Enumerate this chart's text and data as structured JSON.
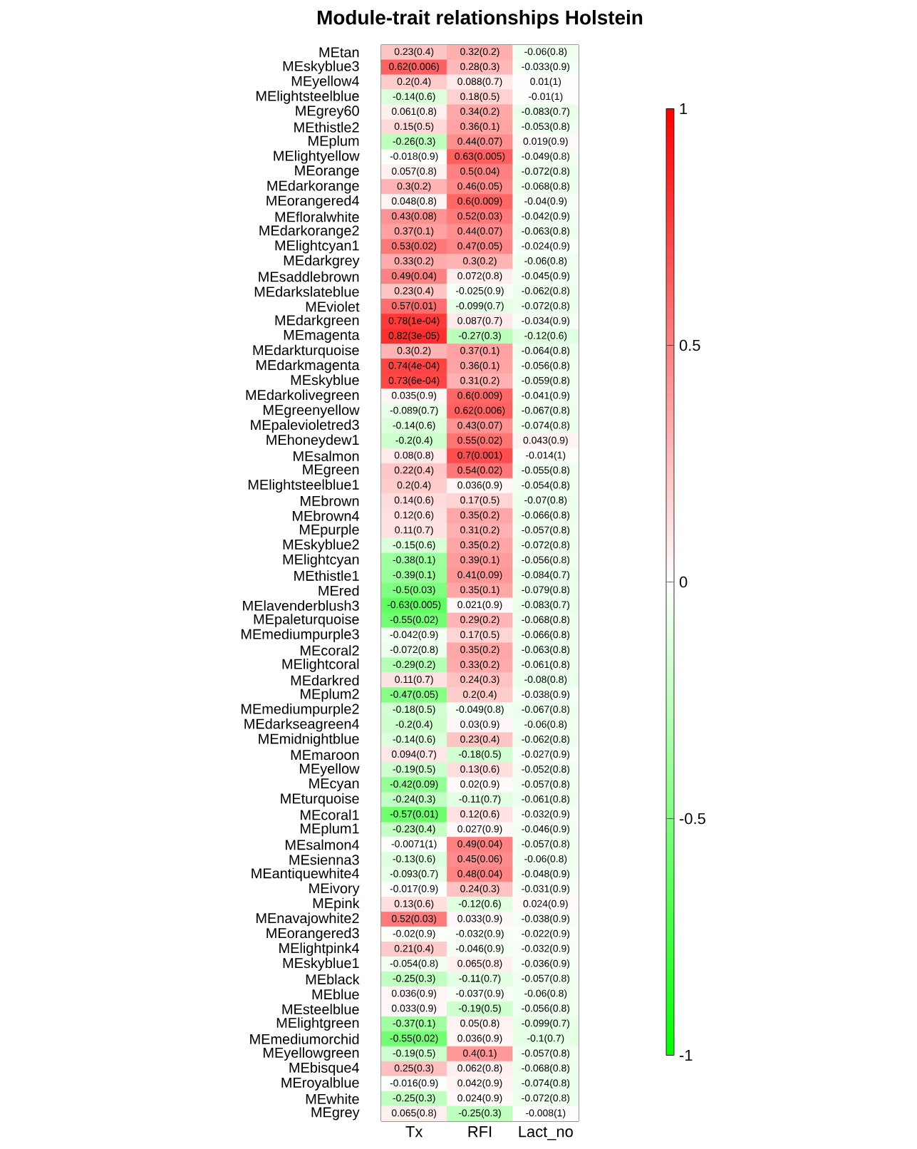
{
  "chart_data": {
    "type": "heatmap",
    "title": "Module-trait relationships Holstein",
    "categories": [
      "Tx",
      "RFI",
      "Lact_no"
    ],
    "y_categories": [
      "MEtan",
      "MEskyblue3",
      "MEyellow4",
      "MElightsteelblue",
      "MEgrey60",
      "MEthistle2",
      "MEplum",
      "MElightyellow",
      "MEorange",
      "MEdarkorange",
      "MEorangered4",
      "MEfloralwhite",
      "MEdarkorange2",
      "MElightcyan1",
      "MEdarkgrey",
      "MEsaddlebrown",
      "MEdarkslateblue",
      "MEviolet",
      "MEdarkgreen",
      "MEmagenta",
      "MEdarkturquoise",
      "MEdarkmagenta",
      "MEskyblue",
      "MEdarkolivegreen",
      "MEgreenyellow",
      "MEpalevioletred3",
      "MEhoneydew1",
      "MEsalmon",
      "MEgreen",
      "MElightsteelblue1",
      "MEbrown",
      "MEbrown4",
      "MEpurple",
      "MEskyblue2",
      "MElightcyan",
      "MEthistle1",
      "MEred",
      "MElavenderblush3",
      "MEpaleturquoise",
      "MEmediumpurple3",
      "MEcoral2",
      "MElightcoral",
      "MEdarkred",
      "MEplum2",
      "MEmediumpurple2",
      "MEdarkseagreen4",
      "MEmidnightblue",
      "MEmaroon",
      "MEyellow",
      "MEcyan",
      "MEturquoise",
      "MEcoral1",
      "MEplum1",
      "MEsalmon4",
      "MEsienna3",
      "MEantiquewhite4",
      "MEivory",
      "MEpink",
      "MEnavajowhite2",
      "MEorangered3",
      "MElightpink4",
      "MEskyblue1",
      "MEblack",
      "MEblue",
      "MEsteelblue",
      "MElightgreen",
      "MEmediumorchid",
      "MEyellowgreen",
      "MEbisque4",
      "MEroyalblue",
      "MEwhite",
      "MEgrey"
    ],
    "cells": [
      [
        0.23,
        0.32,
        -0.06
      ],
      [
        0.62,
        0.28,
        -0.033
      ],
      [
        0.2,
        0.088,
        0.01
      ],
      [
        -0.14,
        0.18,
        -0.01
      ],
      [
        0.061,
        0.34,
        -0.083
      ],
      [
        0.15,
        0.36,
        -0.053
      ],
      [
        -0.26,
        0.44,
        0.019
      ],
      [
        -0.018,
        0.63,
        -0.049
      ],
      [
        0.057,
        0.5,
        -0.072
      ],
      [
        0.3,
        0.46,
        -0.068
      ],
      [
        0.048,
        0.6,
        -0.04
      ],
      [
        0.43,
        0.52,
        -0.042
      ],
      [
        0.37,
        0.44,
        -0.063
      ],
      [
        0.53,
        0.47,
        -0.024
      ],
      [
        0.33,
        0.3,
        -0.06
      ],
      [
        0.49,
        0.072,
        -0.045
      ],
      [
        0.23,
        -0.025,
        -0.062
      ],
      [
        0.57,
        -0.099,
        -0.072
      ],
      [
        0.78,
        0.087,
        -0.034
      ],
      [
        0.82,
        -0.27,
        -0.12
      ],
      [
        0.3,
        0.37,
        -0.064
      ],
      [
        0.74,
        0.36,
        -0.056
      ],
      [
        0.73,
        0.31,
        -0.059
      ],
      [
        0.035,
        0.6,
        -0.041
      ],
      [
        -0.089,
        0.62,
        -0.067
      ],
      [
        -0.14,
        0.43,
        -0.074
      ],
      [
        -0.2,
        0.55,
        0.043
      ],
      [
        0.08,
        0.7,
        -0.014
      ],
      [
        0.22,
        0.54,
        -0.055
      ],
      [
        0.2,
        0.036,
        -0.054
      ],
      [
        0.14,
        0.17,
        -0.07
      ],
      [
        0.12,
        0.35,
        -0.066
      ],
      [
        0.11,
        0.31,
        -0.057
      ],
      [
        -0.15,
        0.35,
        -0.072
      ],
      [
        -0.38,
        0.39,
        -0.056
      ],
      [
        -0.39,
        0.41,
        -0.084
      ],
      [
        -0.5,
        0.35,
        -0.079
      ],
      [
        -0.63,
        0.021,
        -0.083
      ],
      [
        -0.55,
        0.29,
        -0.068
      ],
      [
        -0.042,
        0.17,
        -0.066
      ],
      [
        -0.072,
        0.35,
        -0.063
      ],
      [
        -0.29,
        0.33,
        -0.061
      ],
      [
        0.11,
        0.24,
        -0.08
      ],
      [
        -0.47,
        0.2,
        -0.038
      ],
      [
        -0.18,
        -0.049,
        -0.067
      ],
      [
        -0.2,
        0.03,
        -0.06
      ],
      [
        -0.14,
        0.23,
        -0.062
      ],
      [
        0.094,
        -0.18,
        -0.027
      ],
      [
        -0.19,
        0.13,
        -0.052
      ],
      [
        -0.42,
        0.02,
        -0.057
      ],
      [
        -0.24,
        -0.11,
        -0.061
      ],
      [
        -0.57,
        0.12,
        -0.032
      ],
      [
        -0.23,
        0.027,
        -0.046
      ],
      [
        -0.0071,
        0.49,
        -0.057
      ],
      [
        -0.13,
        0.45,
        -0.06
      ],
      [
        -0.093,
        0.48,
        -0.048
      ],
      [
        -0.017,
        0.24,
        -0.031
      ],
      [
        0.13,
        -0.12,
        0.024
      ],
      [
        0.52,
        0.033,
        -0.038
      ],
      [
        -0.02,
        -0.032,
        -0.022
      ],
      [
        0.21,
        -0.046,
        -0.032
      ],
      [
        -0.054,
        0.065,
        -0.036
      ],
      [
        -0.25,
        -0.11,
        -0.057
      ],
      [
        0.036,
        -0.037,
        -0.06
      ],
      [
        0.033,
        -0.19,
        -0.056
      ],
      [
        -0.37,
        0.05,
        -0.099
      ],
      [
        -0.55,
        0.036,
        -0.1
      ],
      [
        -0.19,
        0.4,
        -0.057
      ],
      [
        0.25,
        0.062,
        -0.068
      ],
      [
        -0.016,
        0.042,
        -0.074
      ],
      [
        -0.25,
        0.024,
        -0.072
      ],
      [
        0.065,
        -0.25,
        -0.008
      ]
    ],
    "cell_labels": [
      [
        "0.23(0.4)",
        "0.32(0.2)",
        "-0.06(0.8)"
      ],
      [
        "0.62(0.006)",
        "0.28(0.3)",
        "-0.033(0.9)"
      ],
      [
        "0.2(0.4)",
        "0.088(0.7)",
        "0.01(1)"
      ],
      [
        "-0.14(0.6)",
        "0.18(0.5)",
        "-0.01(1)"
      ],
      [
        "0.061(0.8)",
        "0.34(0.2)",
        "-0.083(0.7)"
      ],
      [
        "0.15(0.5)",
        "0.36(0.1)",
        "-0.053(0.8)"
      ],
      [
        "-0.26(0.3)",
        "0.44(0.07)",
        "0.019(0.9)"
      ],
      [
        "-0.018(0.9)",
        "0.63(0.005)",
        "-0.049(0.8)"
      ],
      [
        "0.057(0.8)",
        "0.5(0.04)",
        "-0.072(0.8)"
      ],
      [
        "0.3(0.2)",
        "0.46(0.05)",
        "-0.068(0.8)"
      ],
      [
        "0.048(0.8)",
        "0.6(0.009)",
        "-0.04(0.9)"
      ],
      [
        "0.43(0.08)",
        "0.52(0.03)",
        "-0.042(0.9)"
      ],
      [
        "0.37(0.1)",
        "0.44(0.07)",
        "-0.063(0.8)"
      ],
      [
        "0.53(0.02)",
        "0.47(0.05)",
        "-0.024(0.9)"
      ],
      [
        "0.33(0.2)",
        "0.3(0.2)",
        "-0.06(0.8)"
      ],
      [
        "0.49(0.04)",
        "0.072(0.8)",
        "-0.045(0.9)"
      ],
      [
        "0.23(0.4)",
        "-0.025(0.9)",
        "-0.062(0.8)"
      ],
      [
        "0.57(0.01)",
        "-0.099(0.7)",
        "-0.072(0.8)"
      ],
      [
        "0.78(1e-04)",
        "0.087(0.7)",
        "-0.034(0.9)"
      ],
      [
        "0.82(3e-05)",
        "-0.27(0.3)",
        "-0.12(0.6)"
      ],
      [
        "0.3(0.2)",
        "0.37(0.1)",
        "-0.064(0.8)"
      ],
      [
        "0.74(4e-04)",
        "0.36(0.1)",
        "-0.056(0.8)"
      ],
      [
        "0.73(6e-04)",
        "0.31(0.2)",
        "-0.059(0.8)"
      ],
      [
        "0.035(0.9)",
        "0.6(0.009)",
        "-0.041(0.9)"
      ],
      [
        "-0.089(0.7)",
        "0.62(0.006)",
        "-0.067(0.8)"
      ],
      [
        "-0.14(0.6)",
        "0.43(0.07)",
        "-0.074(0.8)"
      ],
      [
        "-0.2(0.4)",
        "0.55(0.02)",
        "0.043(0.9)"
      ],
      [
        "0.08(0.8)",
        "0.7(0.001)",
        "-0.014(1)"
      ],
      [
        "0.22(0.4)",
        "0.54(0.02)",
        "-0.055(0.8)"
      ],
      [
        "0.2(0.4)",
        "0.036(0.9)",
        "-0.054(0.8)"
      ],
      [
        "0.14(0.6)",
        "0.17(0.5)",
        "-0.07(0.8)"
      ],
      [
        "0.12(0.6)",
        "0.35(0.2)",
        "-0.066(0.8)"
      ],
      [
        "0.11(0.7)",
        "0.31(0.2)",
        "-0.057(0.8)"
      ],
      [
        "-0.15(0.6)",
        "0.35(0.2)",
        "-0.072(0.8)"
      ],
      [
        "-0.38(0.1)",
        "0.39(0.1)",
        "-0.056(0.8)"
      ],
      [
        "-0.39(0.1)",
        "0.41(0.09)",
        "-0.084(0.7)"
      ],
      [
        "-0.5(0.03)",
        "0.35(0.1)",
        "-0.079(0.8)"
      ],
      [
        "-0.63(0.005)",
        "0.021(0.9)",
        "-0.083(0.7)"
      ],
      [
        "-0.55(0.02)",
        "0.29(0.2)",
        "-0.068(0.8)"
      ],
      [
        "-0.042(0.9)",
        "0.17(0.5)",
        "-0.066(0.8)"
      ],
      [
        "-0.072(0.8)",
        "0.35(0.2)",
        "-0.063(0.8)"
      ],
      [
        "-0.29(0.2)",
        "0.33(0.2)",
        "-0.061(0.8)"
      ],
      [
        "0.11(0.7)",
        "0.24(0.3)",
        "-0.08(0.8)"
      ],
      [
        "-0.47(0.05)",
        "0.2(0.4)",
        "-0.038(0.9)"
      ],
      [
        "-0.18(0.5)",
        "-0.049(0.8)",
        "-0.067(0.8)"
      ],
      [
        "-0.2(0.4)",
        "0.03(0.9)",
        "-0.06(0.8)"
      ],
      [
        "-0.14(0.6)",
        "0.23(0.4)",
        "-0.062(0.8)"
      ],
      [
        "0.094(0.7)",
        "-0.18(0.5)",
        "-0.027(0.9)"
      ],
      [
        "-0.19(0.5)",
        "0.13(0.6)",
        "-0.052(0.8)"
      ],
      [
        "-0.42(0.09)",
        "0.02(0.9)",
        "-0.057(0.8)"
      ],
      [
        "-0.24(0.3)",
        "-0.11(0.7)",
        "-0.061(0.8)"
      ],
      [
        "-0.57(0.01)",
        "0.12(0.6)",
        "-0.032(0.9)"
      ],
      [
        "-0.23(0.4)",
        "0.027(0.9)",
        "-0.046(0.9)"
      ],
      [
        "-0.0071(1)",
        "0.49(0.04)",
        "-0.057(0.8)"
      ],
      [
        "-0.13(0.6)",
        "0.45(0.06)",
        "-0.06(0.8)"
      ],
      [
        "-0.093(0.7)",
        "0.48(0.04)",
        "-0.048(0.9)"
      ],
      [
        "-0.017(0.9)",
        "0.24(0.3)",
        "-0.031(0.9)"
      ],
      [
        "0.13(0.6)",
        "-0.12(0.6)",
        "0.024(0.9)"
      ],
      [
        "0.52(0.03)",
        "0.033(0.9)",
        "-0.038(0.9)"
      ],
      [
        "-0.02(0.9)",
        "-0.032(0.9)",
        "-0.022(0.9)"
      ],
      [
        "0.21(0.4)",
        "-0.046(0.9)",
        "-0.032(0.9)"
      ],
      [
        "-0.054(0.8)",
        "0.065(0.8)",
        "-0.036(0.9)"
      ],
      [
        "-0.25(0.3)",
        "-0.11(0.7)",
        "-0.057(0.8)"
      ],
      [
        "0.036(0.9)",
        "-0.037(0.9)",
        "-0.06(0.8)"
      ],
      [
        "0.033(0.9)",
        "-0.19(0.5)",
        "-0.056(0.8)"
      ],
      [
        "-0.37(0.1)",
        "0.05(0.8)",
        "-0.099(0.7)"
      ],
      [
        "-0.55(0.02)",
        "0.036(0.9)",
        "-0.1(0.7)"
      ],
      [
        "-0.19(0.5)",
        "0.4(0.1)",
        "-0.057(0.8)"
      ],
      [
        "0.25(0.3)",
        "0.062(0.8)",
        "-0.068(0.8)"
      ],
      [
        "-0.016(0.9)",
        "0.042(0.9)",
        "-0.074(0.8)"
      ],
      [
        "-0.25(0.3)",
        "0.024(0.9)",
        "-0.072(0.8)"
      ],
      [
        "0.065(0.8)",
        "-0.25(0.3)",
        "-0.008(1)"
      ]
    ],
    "clim": [
      -1,
      1
    ],
    "cticks": [
      -1,
      -0.5,
      0,
      0.5,
      1
    ]
  }
}
